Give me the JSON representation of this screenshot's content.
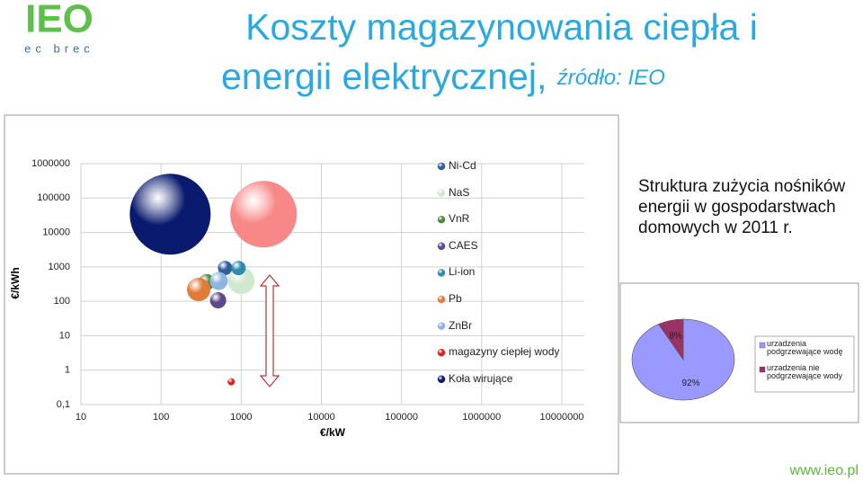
{
  "logo": {
    "name": "IEO",
    "tagline": "ec brec"
  },
  "header": {
    "title_lines": [
      "Koszty magazynowania ciepła i",
      "energii elektrycznej,"
    ],
    "source": "źródło: IEO"
  },
  "side_text": "Struktura zużycia nośników energii w gospodarstwach domowych w 2011 r.",
  "footer": "www.ieo.pl",
  "chart_data": [
    {
      "type": "scatter",
      "x_label": "€/kW",
      "y_label": "€/kWh",
      "log_x": true,
      "log_y": true,
      "grid": true,
      "legend": "right",
      "xlim": [
        10,
        10000000
      ],
      "xticks": [
        10,
        100,
        1000,
        10000,
        100000,
        1000000,
        10000000
      ],
      "ylim": [
        0.1,
        1000000
      ],
      "yticks": [
        {
          "value": 0.1,
          "label": "0,1"
        },
        1,
        10,
        100,
        1000,
        10000,
        100000,
        1000000
      ],
      "series": [
        {
          "name": "Ni-Cd",
          "color": "#2e5f99",
          "x": [
            630
          ],
          "values": [
            930
          ],
          "sizes": [
            8
          ]
        },
        {
          "name": "NaS",
          "color": "#cfe8cf",
          "x": [
            1000
          ],
          "values": [
            400
          ],
          "sizes": [
            15
          ]
        },
        {
          "name": "VnR",
          "color": "#4f8a3c",
          "x": [
            370
          ],
          "values": [
            360
          ],
          "sizes": [
            9
          ]
        },
        {
          "name": "CAES",
          "color": "#5b4a8b",
          "x": [
            515
          ],
          "values": [
            107
          ],
          "sizes": [
            9
          ]
        },
        {
          "name": "Li-ion",
          "color": "#2e8bb0",
          "x": [
            925
          ],
          "values": [
            930
          ],
          "sizes": [
            8
          ]
        },
        {
          "name": "Pb",
          "color": "#e07b39",
          "x": [
            295
          ],
          "values": [
            220
          ],
          "sizes": [
            13
          ]
        },
        {
          "name": "ZnBr",
          "color": "#8fb4e3",
          "x": [
            525
          ],
          "values": [
            390
          ],
          "sizes": [
            10
          ]
        },
        {
          "name": "magazyny ciepłej wody",
          "color": "#e02020",
          "x": [
            750
          ],
          "values": [
            0.46
          ],
          "sizes": [
            4
          ]
        },
        {
          "name": "Koła wirujące",
          "color": "#0a1a6e",
          "x": [
            130
          ],
          "values": [
            34000
          ],
          "sizes": [
            45
          ]
        },
        {
          "color": "#f88888",
          "x": [
            1900
          ],
          "values": [
            34000
          ],
          "sizes": [
            37
          ]
        }
      ]
    },
    {
      "type": "pie",
      "categories": [
        "urzadzenia podgrzewające wodę",
        "urzadzenia nie podgrzewające wody"
      ],
      "values": [
        92,
        8
      ],
      "value_labels": [
        "92%",
        "8%"
      ],
      "colors": [
        "#9999ff",
        "#993366"
      ],
      "legend": "right"
    }
  ]
}
